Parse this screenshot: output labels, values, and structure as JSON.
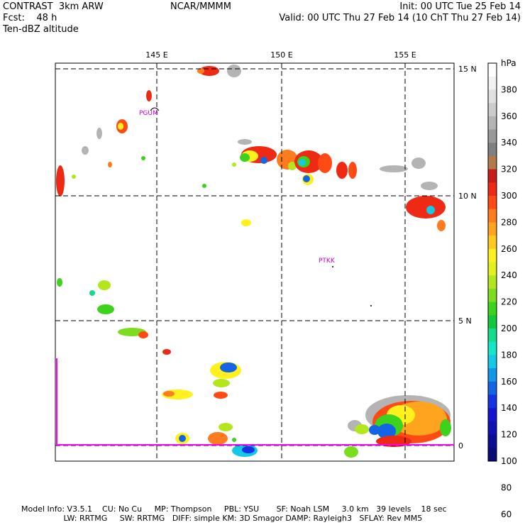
{
  "header": {
    "model_line": "CONTRAST  3km ARW",
    "fcst_line": "Fcst:    48 h",
    "field_line": "Ten-dBZ altitude",
    "center_line": "NCAR/MMMM",
    "init_line": "Init: 00 UTC Tue 25 Feb 14",
    "valid_line": "Valid: 00 UTC Thu 27 Feb 14 (10 ChT Thu 27 Feb 14)"
  },
  "map": {
    "lon_labels": [
      "145 E",
      "150 E",
      "155 E"
    ],
    "lat_labels": [
      "15 N",
      "10 N",
      "5 N",
      "0"
    ],
    "stations": [
      "PGUM",
      "PTKK"
    ],
    "colors": {
      "grid": "#000000",
      "station": "#cc00cc",
      "boundary": "#ff00ff"
    }
  },
  "colorbar": {
    "unit": "hPa",
    "labels": [
      "380",
      "360",
      "340",
      "320",
      "300",
      "280",
      "260",
      "240",
      "220",
      "200",
      "180",
      "160",
      "140",
      "120",
      "100",
      "80",
      "60"
    ],
    "colors": [
      "#ffffff",
      "#f2f2f2",
      "#e0e0e0",
      "#cccccc",
      "#b4b4b4",
      "#9a9a9a",
      "#808080",
      "#b27a4a",
      "#c81c1c",
      "#ee2a14",
      "#ff4a14",
      "#ff7c1e",
      "#ffa41e",
      "#ffc81e",
      "#fff01e",
      "#e2f01e",
      "#b4e61e",
      "#7cdc1e",
      "#3cd21e",
      "#14c83c",
      "#14dc8c",
      "#14e6c8",
      "#14c8e6",
      "#1496e6",
      "#1464e6",
      "#1432e6",
      "#1414d2",
      "#1010b4",
      "#0c0c96",
      "#0a0a78"
    ]
  },
  "footer": {
    "line1": "Model Info: V3.5.1    CU: No Cu     MP: Thompson     PBL: YSU       SF: Noah LSM     3.0 km   39 levels    18 sec",
    "line2": "                 LW: RRTMG     SW: RRTMG   DIFF: simple KM: 3D Smagor DAMP: Rayleigh3   SFLAY: Rev MM5"
  }
}
